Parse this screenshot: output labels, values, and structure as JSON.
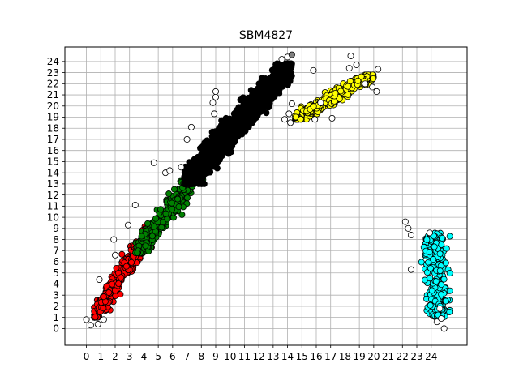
{
  "chart_data": {
    "type": "scatter",
    "title": "SBM4827",
    "xlabel": "",
    "ylabel": "",
    "xlim": [
      -1.5,
      26.5
    ],
    "ylim": [
      -1.5,
      25.3
    ],
    "xticks": [
      0,
      1,
      2,
      3,
      4,
      5,
      6,
      7,
      8,
      9,
      10,
      11,
      12,
      13,
      14,
      15,
      16,
      17,
      18,
      19,
      20,
      21,
      22,
      23,
      24
    ],
    "yticks": [
      0,
      1,
      2,
      3,
      4,
      5,
      6,
      7,
      8,
      9,
      10,
      11,
      12,
      13,
      14,
      15,
      16,
      17,
      18,
      19,
      20,
      21,
      22,
      23,
      24
    ],
    "grid": true,
    "legend": "none",
    "marker_edge_color": "#000000",
    "clusters": [
      {
        "color": "#ff0000",
        "x_range": [
          0.5,
          4.7
        ],
        "y_range": [
          1.0,
          9.3
        ],
        "trend": "diagonal",
        "approx_points": 350
      },
      {
        "color": "#008000",
        "x_range": [
          3.4,
          8.7
        ],
        "y_range": [
          6.8,
          15.5
        ],
        "trend": "diagonal",
        "approx_points": 300
      },
      {
        "color": "#000000",
        "x_range": [
          6.8,
          14.3
        ],
        "y_range": [
          13.0,
          23.8
        ],
        "trend": "diagonal",
        "approx_points": 900
      },
      {
        "color": "#ffff00",
        "x_range": [
          14.5,
          20.0
        ],
        "y_range": [
          18.8,
          22.8
        ],
        "trend": "diagonal-shallow",
        "approx_points": 250
      },
      {
        "color": "#00ffff",
        "x_range": [
          23.0,
          25.3
        ],
        "y_range": [
          0.9,
          8.6
        ],
        "trend": "vertical",
        "approx_points": 250
      }
    ],
    "outliers_white": [
      {
        "x": 0,
        "y": 0.8
      },
      {
        "x": 0.3,
        "y": 0.3
      },
      {
        "x": 0.8,
        "y": 0.4
      },
      {
        "x": 1.2,
        "y": 0.8
      },
      {
        "x": 0.9,
        "y": 4.4
      },
      {
        "x": 1.9,
        "y": 8.0
      },
      {
        "x": 2.0,
        "y": 6.6
      },
      {
        "x": 2.9,
        "y": 9.3
      },
      {
        "x": 3.4,
        "y": 11.1
      },
      {
        "x": 4.7,
        "y": 14.9
      },
      {
        "x": 5.5,
        "y": 14.0
      },
      {
        "x": 5.8,
        "y": 14.2
      },
      {
        "x": 6.6,
        "y": 14.5
      },
      {
        "x": 7.0,
        "y": 17.0
      },
      {
        "x": 7.3,
        "y": 18.1
      },
      {
        "x": 8.9,
        "y": 19.3
      },
      {
        "x": 8.8,
        "y": 20.3
      },
      {
        "x": 9.0,
        "y": 20.8
      },
      {
        "x": 9.0,
        "y": 21.3
      },
      {
        "x": 13.6,
        "y": 24.2
      },
      {
        "x": 14.0,
        "y": 24.4
      },
      {
        "x": 14.1,
        "y": 19.3
      },
      {
        "x": 14.2,
        "y": 18.5
      },
      {
        "x": 13.8,
        "y": 18.8
      },
      {
        "x": 14.3,
        "y": 20.2
      },
      {
        "x": 15.8,
        "y": 23.2
      },
      {
        "x": 15.9,
        "y": 18.8
      },
      {
        "x": 16.3,
        "y": 20.3
      },
      {
        "x": 17.1,
        "y": 18.9
      },
      {
        "x": 18.4,
        "y": 24.5
      },
      {
        "x": 18.3,
        "y": 23.4
      },
      {
        "x": 18.8,
        "y": 23.7
      },
      {
        "x": 19.4,
        "y": 22.0
      },
      {
        "x": 19.9,
        "y": 21.7
      },
      {
        "x": 20.3,
        "y": 23.3
      },
      {
        "x": 20.2,
        "y": 21.3
      },
      {
        "x": 22.2,
        "y": 9.6
      },
      {
        "x": 22.4,
        "y": 9.0
      },
      {
        "x": 22.6,
        "y": 8.4
      },
      {
        "x": 22.6,
        "y": 5.3
      },
      {
        "x": 23.9,
        "y": 8.6
      },
      {
        "x": 24.4,
        "y": 0.6
      },
      {
        "x": 24.7,
        "y": 0.9
      },
      {
        "x": 24.9,
        "y": 0.0
      },
      {
        "x": 24.6,
        "y": 1.8
      }
    ],
    "outliers_gray": [
      {
        "x": 14.3,
        "y": 24.6
      }
    ]
  }
}
